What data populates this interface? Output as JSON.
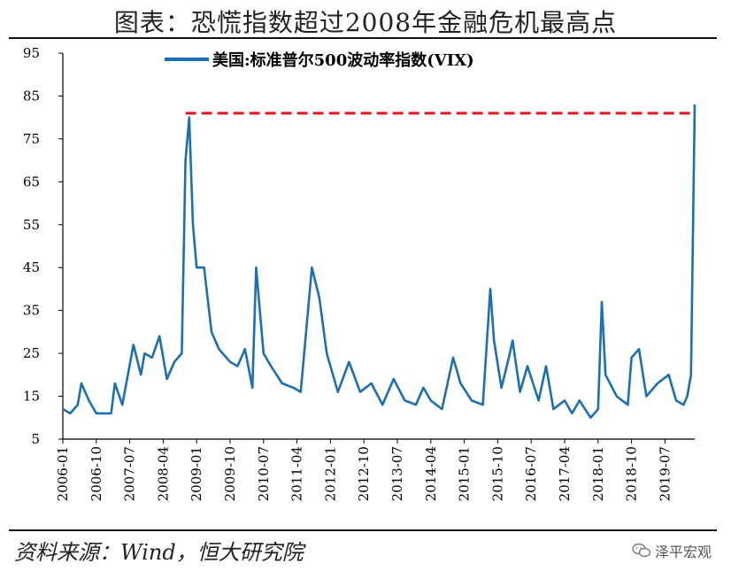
{
  "title": "图表：恐慌指数超过2008年金融危机最高点",
  "source": "资料来源：Wind，恒大研究院",
  "watermark": {
    "text": "泽平宏观",
    "icon": "wechat-icon"
  },
  "colors": {
    "series": "#1a6fb5",
    "reference": "#e8141c",
    "axis": "#000000"
  },
  "chart_data": {
    "type": "line",
    "title": "",
    "xlabel": "",
    "ylabel": "",
    "ylim": [
      5,
      95
    ],
    "yticks": [
      5,
      15,
      25,
      35,
      45,
      55,
      65,
      75,
      85,
      95
    ],
    "xticks": [
      "2006-01",
      "2006-10",
      "2007-07",
      "2008-04",
      "2009-01",
      "2009-10",
      "2010-07",
      "2011-04",
      "2012-01",
      "2012-10",
      "2013-07",
      "2014-04",
      "2015-01",
      "2015-10",
      "2016-07",
      "2017-04",
      "2018-01",
      "2018-10",
      "2019-07"
    ],
    "xlim": [
      "2006-01",
      "2020-03"
    ],
    "grid": false,
    "legend_position": "top",
    "series": [
      {
        "name": "美国:标准普尔500波动率指数(VIX)",
        "x": [
          "2006-01",
          "2006-03",
          "2006-05",
          "2006-06",
          "2006-08",
          "2006-10",
          "2006-12",
          "2007-02",
          "2007-03",
          "2007-05",
          "2007-08",
          "2007-10",
          "2007-11",
          "2008-01",
          "2008-03",
          "2008-05",
          "2008-07",
          "2008-09",
          "2008-10",
          "2008-11",
          "2008-12",
          "2009-01",
          "2009-03",
          "2009-05",
          "2009-07",
          "2009-10",
          "2009-12",
          "2010-02",
          "2010-04",
          "2010-05",
          "2010-07",
          "2010-09",
          "2010-12",
          "2011-03",
          "2011-05",
          "2011-08",
          "2011-10",
          "2011-12",
          "2012-03",
          "2012-06",
          "2012-09",
          "2012-12",
          "2013-03",
          "2013-06",
          "2013-09",
          "2013-12",
          "2014-02",
          "2014-04",
          "2014-07",
          "2014-10",
          "2014-12",
          "2015-03",
          "2015-06",
          "2015-08",
          "2015-09",
          "2015-11",
          "2016-01",
          "2016-02",
          "2016-04",
          "2016-06",
          "2016-09",
          "2016-11",
          "2017-01",
          "2017-04",
          "2017-06",
          "2017-08",
          "2017-11",
          "2018-01",
          "2018-02",
          "2018-03",
          "2018-06",
          "2018-09",
          "2018-10",
          "2018-12",
          "2019-02",
          "2019-05",
          "2019-08",
          "2019-10",
          "2019-12",
          "2020-01",
          "2020-02",
          "2020-03"
        ],
        "values": [
          12,
          11,
          13,
          18,
          14,
          11,
          11,
          11,
          18,
          13,
          27,
          20,
          25,
          24,
          29,
          19,
          23,
          25,
          70,
          80,
          55,
          45,
          45,
          30,
          26,
          23,
          22,
          26,
          17,
          45,
          25,
          22,
          18,
          17,
          16,
          45,
          38,
          25,
          16,
          23,
          16,
          18,
          13,
          19,
          14,
          13,
          17,
          14,
          12,
          24,
          18,
          14,
          13,
          40,
          28,
          17,
          24,
          28,
          16,
          22,
          14,
          22,
          12,
          14,
          11,
          14,
          10,
          12,
          37,
          20,
          15,
          13,
          24,
          26,
          15,
          18,
          20,
          14,
          13,
          15,
          20,
          83
        ]
      },
      {
        "name": "",
        "type": "reference-line",
        "x": [
          "2008-10",
          "2020-03"
        ],
        "values": [
          81,
          81
        ]
      }
    ]
  }
}
